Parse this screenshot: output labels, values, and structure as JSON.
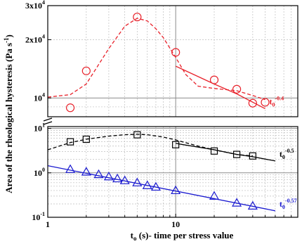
{
  "chart_data": {
    "type": "scatter",
    "xlabel_main": "t",
    "xlabel_sub": "o",
    "xlabel_rest": " (s)- time per stress value",
    "ylabel": "Area of the rheological hysteresis (Pa s",
    "ylabel_sup": "-1",
    "ylabel_close": ")",
    "x_scale": "log",
    "xlim": [
      1,
      90
    ],
    "x_ticks": [
      {
        "value": 1,
        "label": "1"
      },
      {
        "value": 10,
        "label": "10"
      }
    ],
    "panels": [
      {
        "name": "upper",
        "y_scale": "log",
        "ylim": [
          8000,
          30000
        ],
        "y_ticks": [
          {
            "value": 10000,
            "base": "10",
            "exp": "4"
          },
          {
            "value": 20000,
            "base": "2x10",
            "exp": "4"
          },
          {
            "value": 30000,
            "base": "3x10",
            "exp": "4"
          }
        ],
        "series": [
          {
            "color": "#e8222b",
            "marker": "circle",
            "points": [
              [
                1.5,
                8900
              ],
              [
                2,
                13800
              ],
              [
                5,
                26200
              ],
              [
                10,
                17200
              ],
              [
                20,
                12400
              ],
              [
                30,
                11100
              ],
              [
                40,
                9400
              ],
              [
                50,
                9500
              ]
            ],
            "trend_dashed": [
              [
                1,
                10100
              ],
              [
                1.5,
                10400
              ],
              [
                2,
                11800
              ],
              [
                3,
                18000
              ],
              [
                4,
                23500
              ],
              [
                5,
                25800
              ],
              [
                6,
                25000
              ],
              [
                7,
                22800
              ],
              [
                8,
                20500
              ],
              [
                10,
                16200
              ],
              [
                12,
                13200
              ],
              [
                15,
                11500
              ],
              [
                20,
                11200
              ],
              [
                30,
                10900
              ],
              [
                40,
                10300
              ],
              [
                50,
                9800
              ]
            ],
            "trend_solid": [
              [
                10,
                14600
              ],
              [
                20,
                11800
              ],
              [
                30,
                10500
              ],
              [
                50,
                8800
              ]
            ],
            "power_base": "t",
            "power_sub": "0",
            "power_exp": "-0.4"
          }
        ]
      },
      {
        "name": "lower",
        "y_scale": "log",
        "ylim": [
          0.1,
          11
        ],
        "y_ticks": [
          {
            "value": 0.1,
            "base": "10",
            "exp": "-1"
          },
          {
            "value": 1,
            "base": "10",
            "exp": "0"
          },
          {
            "value": 10,
            "base": "10",
            "exp": "1"
          }
        ],
        "series": [
          {
            "color": "#000000",
            "marker": "square",
            "points": [
              [
                1.5,
                5.0
              ],
              [
                2,
                5.7
              ],
              [
                5,
                7.2
              ],
              [
                10,
                4.3
              ],
              [
                20,
                3.1
              ],
              [
                30,
                2.6
              ],
              [
                40,
                2.4
              ]
            ],
            "trend_dashed": [
              [
                1,
                3.3
              ],
              [
                1.5,
                4.8
              ],
              [
                2,
                5.7
              ],
              [
                3,
                6.7
              ],
              [
                4,
                7.2
              ],
              [
                5,
                7.4
              ],
              [
                6,
                7.2
              ],
              [
                8,
                6.4
              ],
              [
                10,
                5.5
              ],
              [
                15,
                4.0
              ],
              [
                20,
                3.3
              ],
              [
                30,
                2.6
              ],
              [
                40,
                2.4
              ]
            ],
            "trend_solid": [
              [
                10,
                4.6
              ],
              [
                20,
                3.3
              ],
              [
                30,
                2.6
              ],
              [
                40,
                2.3
              ],
              [
                60,
                1.85
              ]
            ],
            "power_base": "t",
            "power_sub": "0",
            "power_exp": "-0.5"
          },
          {
            "color": "#1a1ad0",
            "marker": "triangle",
            "points": [
              [
                1.5,
                1.2
              ],
              [
                2,
                1.05
              ],
              [
                2.5,
                0.92
              ],
              [
                3,
                0.82
              ],
              [
                3.5,
                0.74
              ],
              [
                4,
                0.67
              ],
              [
                5,
                0.6
              ],
              [
                6,
                0.52
              ],
              [
                7,
                0.48
              ],
              [
                10,
                0.4
              ],
              [
                20,
                0.3
              ],
              [
                30,
                0.21
              ],
              [
                40,
                0.18
              ]
            ],
            "trend_solid": [
              [
                1,
                1.45
              ],
              [
                60,
                0.14
              ]
            ],
            "power_base": "t",
            "power_sub": "0",
            "power_exp": "-0.57"
          }
        ]
      }
    ]
  }
}
